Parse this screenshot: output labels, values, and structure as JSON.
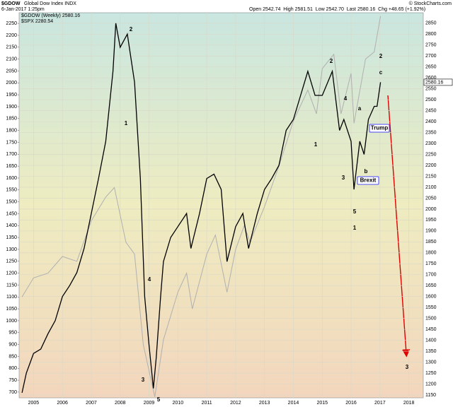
{
  "chart_data": {
    "type": "line",
    "title": "$GDOW",
    "subtitle": "Global Dow Index INDX",
    "date": "6-Jan-2017 1:25pm",
    "quote": "Open 2542.74  High 2581.51  Low 2542.70  Last 2580.16  Chg +48.65 (+1.92%)",
    "credit": "© StockCharts.com",
    "xlim": [
      2004.5,
      2018.5
    ],
    "xticks": [
      2005,
      2006,
      2007,
      2008,
      2009,
      2010,
      2011,
      2012,
      2013,
      2014,
      2015,
      2016,
      2017,
      2018
    ],
    "ylim": [
      676,
      2295
    ],
    "yticks": [
      700,
      750,
      800,
      850,
      900,
      950,
      1000,
      1050,
      1100,
      1150,
      1200,
      1250,
      1300,
      1350,
      1400,
      1450,
      1500,
      1550,
      1600,
      1650,
      1700,
      1750,
      1800,
      1850,
      1900,
      1950,
      2000,
      2050,
      2100,
      2150,
      2200,
      2250
    ],
    "y2lim": [
      1137,
      2898
    ],
    "y2ticks": [
      1150,
      1200,
      1250,
      1300,
      1350,
      1400,
      1450,
      1500,
      1550,
      1600,
      1650,
      1700,
      1750,
      1800,
      1850,
      1900,
      1950,
      2000,
      2050,
      2100,
      2150,
      2200,
      2250,
      2300,
      2350,
      2400,
      2450,
      2500,
      2550,
      2600,
      2650,
      2700,
      2750,
      2800,
      2850
    ],
    "grid": true,
    "series": [
      {
        "name": "$GDOW (Weekly) 2580.16",
        "color": "#000000",
        "axis": "y2",
        "last_value_label": "2580.16",
        "x": [
          2004.6,
          2004.75,
          2005.0,
          2005.25,
          2005.5,
          2005.75,
          2006.0,
          2006.25,
          2006.5,
          2006.75,
          2007.0,
          2007.25,
          2007.5,
          2007.75,
          2007.85,
          2008.0,
          2008.25,
          2008.5,
          2008.7,
          2008.85,
          2009.0,
          2009.15,
          2009.25,
          2009.4,
          2009.5,
          2009.75,
          2010.0,
          2010.3,
          2010.45,
          2010.75,
          2011.0,
          2011.25,
          2011.5,
          2011.7,
          2012.0,
          2012.25,
          2012.45,
          2012.75,
          2013.0,
          2013.25,
          2013.5,
          2013.75,
          2014.0,
          2014.25,
          2014.5,
          2014.75,
          2015.0,
          2015.35,
          2015.6,
          2015.75,
          2016.0,
          2016.1,
          2016.3,
          2016.45,
          2016.6,
          2016.8,
          2016.9,
          2017.02
        ],
        "values": [
          1160,
          1250,
          1340,
          1360,
          1430,
          1490,
          1600,
          1650,
          1710,
          1820,
          1980,
          2140,
          2310,
          2630,
          2850,
          2740,
          2800,
          2580,
          2140,
          1600,
          1380,
          1180,
          1320,
          1600,
          1760,
          1870,
          1920,
          1980,
          1820,
          1980,
          2140,
          2160,
          2090,
          1760,
          1920,
          1980,
          1820,
          1980,
          2090,
          2140,
          2200,
          2360,
          2410,
          2520,
          2630,
          2520,
          2520,
          2630,
          2360,
          2410,
          2310,
          2090,
          2310,
          2250,
          2410,
          2470,
          2470,
          2580
        ]
      },
      {
        "name": "$SPX 2280.54",
        "color": "#b0b0b0",
        "axis": "y",
        "x": [
          2004.6,
          2005.0,
          2005.5,
          2006.0,
          2006.5,
          2007.0,
          2007.5,
          2007.8,
          2008.2,
          2008.5,
          2008.8,
          2009.2,
          2009.5,
          2010.0,
          2010.3,
          2010.5,
          2011.0,
          2011.3,
          2011.7,
          2012.0,
          2012.3,
          2012.5,
          2013.0,
          2013.5,
          2014.0,
          2014.5,
          2014.8,
          2015.0,
          2015.4,
          2015.65,
          2016.0,
          2016.1,
          2016.5,
          2016.8,
          2017.02
        ],
        "values": [
          1100,
          1180,
          1200,
          1270,
          1250,
          1420,
          1520,
          1560,
          1330,
          1280,
          900,
          680,
          920,
          1120,
          1200,
          1050,
          1280,
          1360,
          1120,
          1300,
          1400,
          1330,
          1480,
          1650,
          1840,
          1970,
          1870,
          2060,
          2120,
          1870,
          2040,
          1830,
          2100,
          2130,
          2280
        ]
      }
    ],
    "annotations": [
      {
        "text": "2",
        "color": "#1a1aff"
      },
      {
        "text": "1",
        "color": "#1a1aff"
      },
      {
        "text": "4",
        "color": "#1a1aff"
      },
      {
        "text": "3",
        "color": "#1a1aff"
      },
      {
        "text": "5",
        "color": "#1a1aff"
      },
      {
        "text": "1",
        "color": "#1a1aff"
      },
      {
        "text": "2",
        "color": "#1a1aff"
      },
      {
        "text": "4",
        "color": "#1a1aff"
      },
      {
        "text": "3",
        "color": "#1a1aff"
      },
      {
        "text": "5",
        "color": "#1a1aff"
      },
      {
        "text": "1",
        "color": "#e00000"
      },
      {
        "text": "a",
        "color": "#1a1aff"
      },
      {
        "text": "b",
        "color": "#1a1aff"
      },
      {
        "text": "c",
        "color": "#1a1aff"
      },
      {
        "text": "2",
        "color": "#e00000"
      },
      {
        "text": "3",
        "color": "#e00000"
      }
    ],
    "callouts": [
      "Trump",
      "Brexit"
    ]
  }
}
